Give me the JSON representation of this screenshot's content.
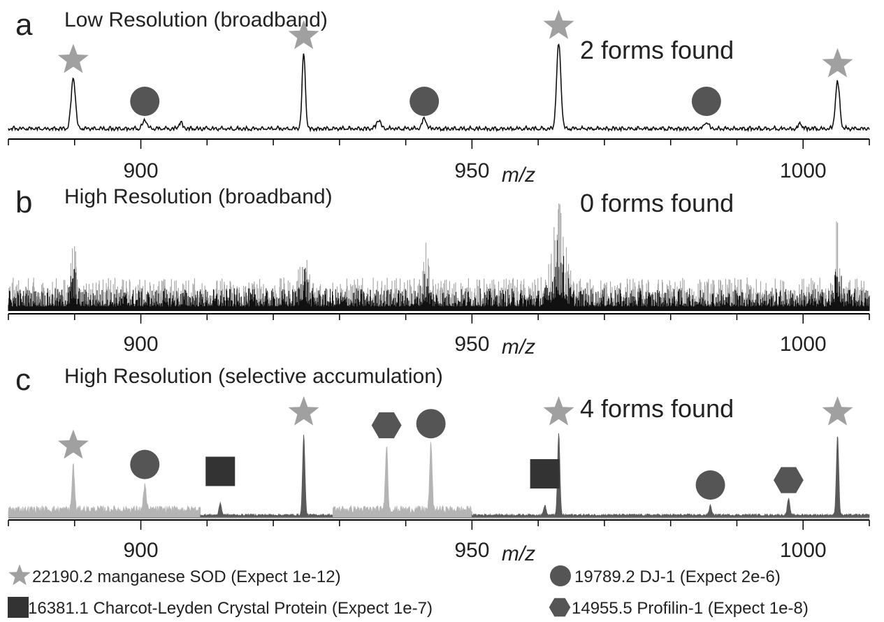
{
  "chart_data": [
    {
      "type": "line",
      "panel_letter": "a",
      "title": "Low Resolution (broadband)",
      "forms_found": "2 forms found",
      "xlabel": "m/z",
      "xlim": [
        880,
        1010
      ],
      "xticks": [
        900,
        950,
        1000
      ],
      "style": "low_res",
      "peaks": [
        {
          "x": 889.8,
          "h": 0.6,
          "w": 0.45,
          "marker": "star"
        },
        {
          "x": 900.6,
          "h": 0.1,
          "w": 0.45,
          "marker": "circle"
        },
        {
          "x": 906.0,
          "h": 0.07,
          "w": 0.45,
          "marker": null
        },
        {
          "x": 924.6,
          "h": 0.88,
          "w": 0.35,
          "marker": "star"
        },
        {
          "x": 935.9,
          "h": 0.1,
          "w": 0.45,
          "marker": null
        },
        {
          "x": 942.8,
          "h": 0.12,
          "w": 0.45,
          "marker": "circle"
        },
        {
          "x": 963.1,
          "h": 1.0,
          "w": 0.45,
          "marker": "star"
        },
        {
          "x": 985.4,
          "h": 0.08,
          "w": 0.45,
          "marker": "circle"
        },
        {
          "x": 999.6,
          "h": 0.06,
          "w": 0.4,
          "marker": null
        },
        {
          "x": 1005.2,
          "h": 0.55,
          "w": 0.45,
          "marker": "star"
        }
      ]
    },
    {
      "type": "line",
      "panel_letter": "b",
      "title": "High Resolution (broadband)",
      "forms_found": "0 forms found",
      "xlabel": "m/z",
      "xlim": [
        880,
        1010
      ],
      "xticks": [
        900,
        950,
        1000
      ],
      "style": "noise",
      "peaks": [
        {
          "x": 889.8,
          "h": 0.6,
          "w": 0.5,
          "marker": null
        },
        {
          "x": 924.6,
          "h": 0.7,
          "w": 0.6,
          "marker": null
        },
        {
          "x": 943.0,
          "h": 0.45,
          "w": 0.6,
          "marker": null
        },
        {
          "x": 963.1,
          "h": 1.0,
          "w": 1.2,
          "marker": null
        },
        {
          "x": 1005.2,
          "h": 0.85,
          "w": 0.5,
          "marker": null
        }
      ]
    },
    {
      "type": "line",
      "panel_letter": "c",
      "title": "High Resolution (selective accumulation)",
      "forms_found": "4 forms found",
      "xlabel": "m/z",
      "xlim": [
        880,
        1010
      ],
      "xticks": [
        900,
        950,
        1000
      ],
      "style": "segments",
      "segments": [
        {
          "from": 880,
          "to": 909,
          "color": "#b4b4b4"
        },
        {
          "from": 909,
          "to": 929,
          "color": "#5a5a5a"
        },
        {
          "from": 929,
          "to": 950,
          "color": "#b4b4b4"
        },
        {
          "from": 950,
          "to": 1010,
          "color": "#5a5a5a"
        }
      ],
      "peaks": [
        {
          "x": 889.8,
          "h": 0.55,
          "w": 0.25,
          "marker": "star"
        },
        {
          "x": 900.6,
          "h": 0.32,
          "w": 0.25,
          "marker": "circle"
        },
        {
          "x": 912.0,
          "h": 0.15,
          "w": 0.25,
          "marker": "square"
        },
        {
          "x": 924.6,
          "h": 0.98,
          "w": 0.25,
          "marker": "star"
        },
        {
          "x": 937.1,
          "h": 0.8,
          "w": 0.25,
          "marker": "hexagon"
        },
        {
          "x": 943.8,
          "h": 0.82,
          "w": 0.25,
          "marker": "circle"
        },
        {
          "x": 961.0,
          "h": 0.12,
          "w": 0.25,
          "marker": "square"
        },
        {
          "x": 963.1,
          "h": 1.0,
          "w": 0.25,
          "marker": "star"
        },
        {
          "x": 986.0,
          "h": 0.12,
          "w": 0.25,
          "marker": "circle"
        },
        {
          "x": 997.8,
          "h": 0.2,
          "w": 0.25,
          "marker": "hexagon"
        },
        {
          "x": 1005.2,
          "h": 0.98,
          "w": 0.25,
          "marker": "star"
        }
      ]
    }
  ],
  "legend": [
    {
      "marker": "star",
      "label": "22190.2 manganese SOD (Expect 1e-12)"
    },
    {
      "marker": "circle",
      "label": "19789.2 DJ-1 (Expect 2e-6)"
    },
    {
      "marker": "square",
      "label": "16381.1 Charcot-Leyden Crystal Protein (Expect 1e-7)"
    },
    {
      "marker": "hexagon",
      "label": "14955.5 Profilin-1 (Expect 1e-8)"
    }
  ],
  "colors": {
    "star": "#a0a0a0",
    "circle": "#555555",
    "square": "#333333",
    "hexagon": "#555555",
    "trace": "#111111",
    "noise_light": "#a8a8a8"
  }
}
